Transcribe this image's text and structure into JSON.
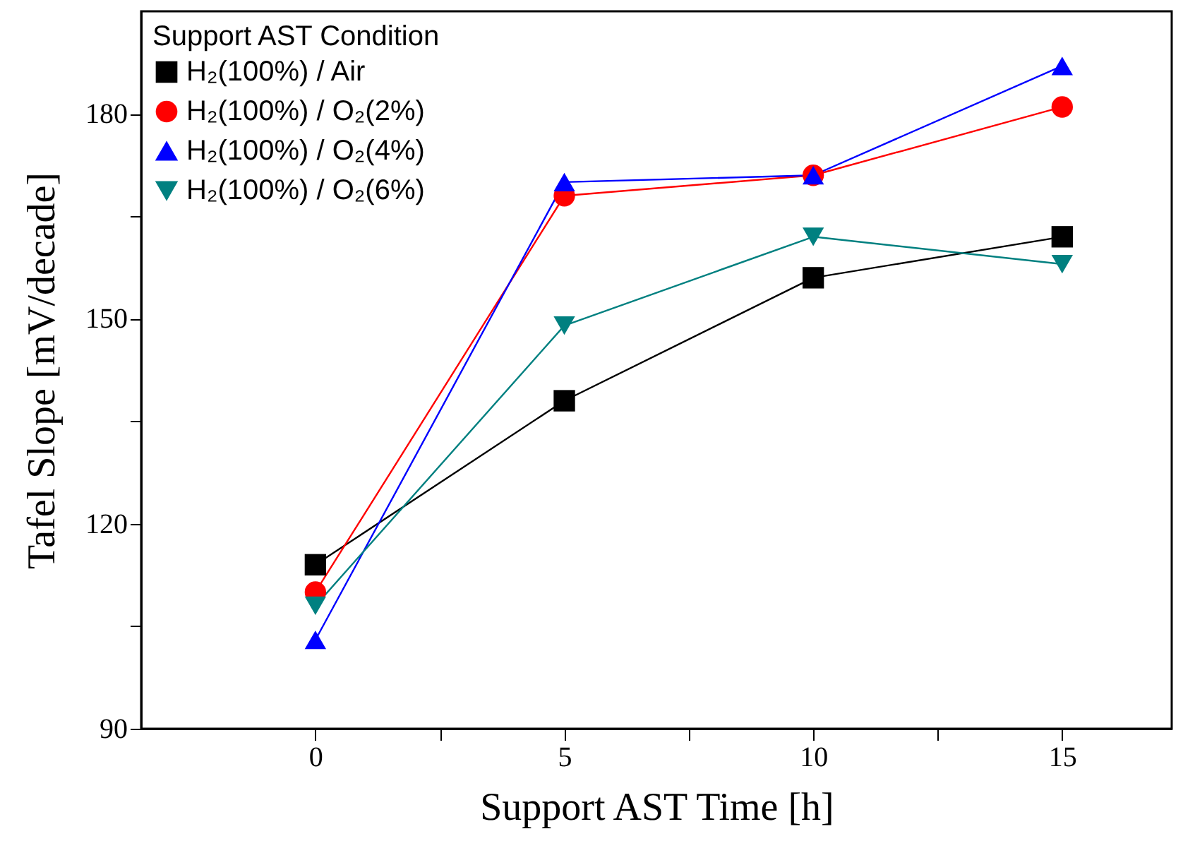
{
  "chart_data": {
    "type": "line",
    "xlabel": "Support AST Time [h]",
    "ylabel": "Tafel Slope [mV/decade]",
    "legend_title": "Support AST Condition",
    "x": [
      0,
      5,
      10,
      15
    ],
    "series": [
      {
        "name": "H₂(100%) / Air",
        "color": "#000000",
        "marker": "square",
        "values": [
          114,
          138,
          156,
          162
        ]
      },
      {
        "name": "H₂(100%) / O₂(2%)",
        "color": "#ff0000",
        "marker": "circle",
        "values": [
          110,
          168,
          171,
          181
        ]
      },
      {
        "name": "H₂(100%) / O₂(4%)",
        "color": "#0000ff",
        "marker": "triangle",
        "values": [
          103,
          170,
          171,
          187
        ]
      },
      {
        "name": "H₂(100%) / O₂(6%)",
        "color": "#008080",
        "marker": "triangle_down",
        "values": [
          108,
          149,
          162,
          158
        ]
      }
    ],
    "xlim": [
      -3.5,
      17.2
    ],
    "ylim": [
      90,
      195
    ],
    "xticks": [
      0,
      {
        "value": 2.5,
        "label": null
      },
      5,
      {
        "value": 7.5,
        "label": null
      },
      10,
      {
        "value": 12.5,
        "label": null
      },
      15
    ],
    "yticks": [
      90,
      {
        "value": 105,
        "label": null
      },
      120,
      {
        "value": 135,
        "label": null
      },
      150,
      {
        "value": 165,
        "label": null
      },
      180
    ],
    "grid": false,
    "legend": "top left",
    "line_style": "solid"
  }
}
